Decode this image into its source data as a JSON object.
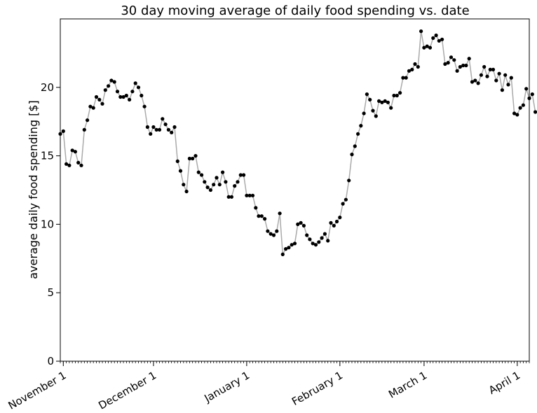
{
  "chart_data": {
    "type": "line",
    "title": "30 day moving average of daily food spending vs. date",
    "xlabel": "",
    "ylabel": "average daily food spending [$]",
    "ylim": [
      0,
      25
    ],
    "yticks": [
      0,
      5,
      10,
      15,
      20
    ],
    "xlim": [
      "2016-10-31",
      "2017-04-05"
    ],
    "xticks": [
      {
        "label": "November 1",
        "date": "2016-11-01"
      },
      {
        "label": "December 1",
        "date": "2016-12-01"
      },
      {
        "label": "January 1",
        "date": "2017-01-01"
      },
      {
        "label": "February 1",
        "date": "2017-02-01"
      },
      {
        "label": "March 1",
        "date": "2017-03-01"
      },
      {
        "label": "April 1",
        "date": "2017-04-01"
      }
    ],
    "grid": false,
    "colors": {
      "line": "#aaaaaa",
      "marker": "#000000"
    },
    "series": [
      {
        "x_start": "2016-10-31",
        "x_step_days": 1,
        "values": [
          16.6,
          16.8,
          14.4,
          14.3,
          15.4,
          15.3,
          14.5,
          14.3,
          16.9,
          17.6,
          18.6,
          18.5,
          19.3,
          19.1,
          18.8,
          19.8,
          20.1,
          20.5,
          20.4,
          19.7,
          19.3,
          19.3,
          19.4,
          19.1,
          19.7,
          20.3,
          20.0,
          19.4,
          18.6,
          17.1,
          16.6,
          17.1,
          16.9,
          16.9,
          17.7,
          17.3,
          16.9,
          16.7,
          17.1,
          14.6,
          13.9,
          12.9,
          12.4,
          14.8,
          14.8,
          15.0,
          13.8,
          13.6,
          13.1,
          12.7,
          12.5,
          12.9,
          13.4,
          12.9,
          13.8,
          13.1,
          12.0,
          12.0,
          12.8,
          13.1,
          13.6,
          13.6,
          12.1,
          12.1,
          12.1,
          11.2,
          10.6,
          10.6,
          10.4,
          9.5,
          9.3,
          9.2,
          9.5,
          10.8,
          7.8,
          8.2,
          8.3,
          8.5,
          8.6,
          10.0,
          10.1,
          9.9,
          9.2,
          8.9,
          8.6,
          8.5,
          8.7,
          9.0,
          9.3,
          8.8,
          10.1,
          9.9,
          10.2,
          10.5,
          11.5,
          11.8,
          13.2,
          15.1,
          15.7,
          16.6,
          17.2,
          18.1,
          19.5,
          19.1,
          18.3,
          17.9,
          19.0,
          18.9,
          19.0,
          18.9,
          18.5,
          19.4,
          19.4,
          19.6,
          20.7,
          20.7,
          21.2,
          21.3,
          21.7,
          21.5,
          24.1,
          22.9,
          23.0,
          22.9,
          23.6,
          23.8,
          23.4,
          23.5,
          21.7,
          21.8,
          22.2,
          22.0,
          21.2,
          21.5,
          21.6,
          21.6,
          22.1,
          20.4,
          20.5,
          20.3,
          20.9,
          21.5,
          20.8,
          21.3,
          21.3,
          20.5,
          21.0,
          19.8,
          20.9,
          20.2,
          20.7,
          18.1,
          18.0,
          18.5,
          18.7,
          19.9,
          19.2,
          19.5,
          18.2
        ]
      }
    ]
  }
}
